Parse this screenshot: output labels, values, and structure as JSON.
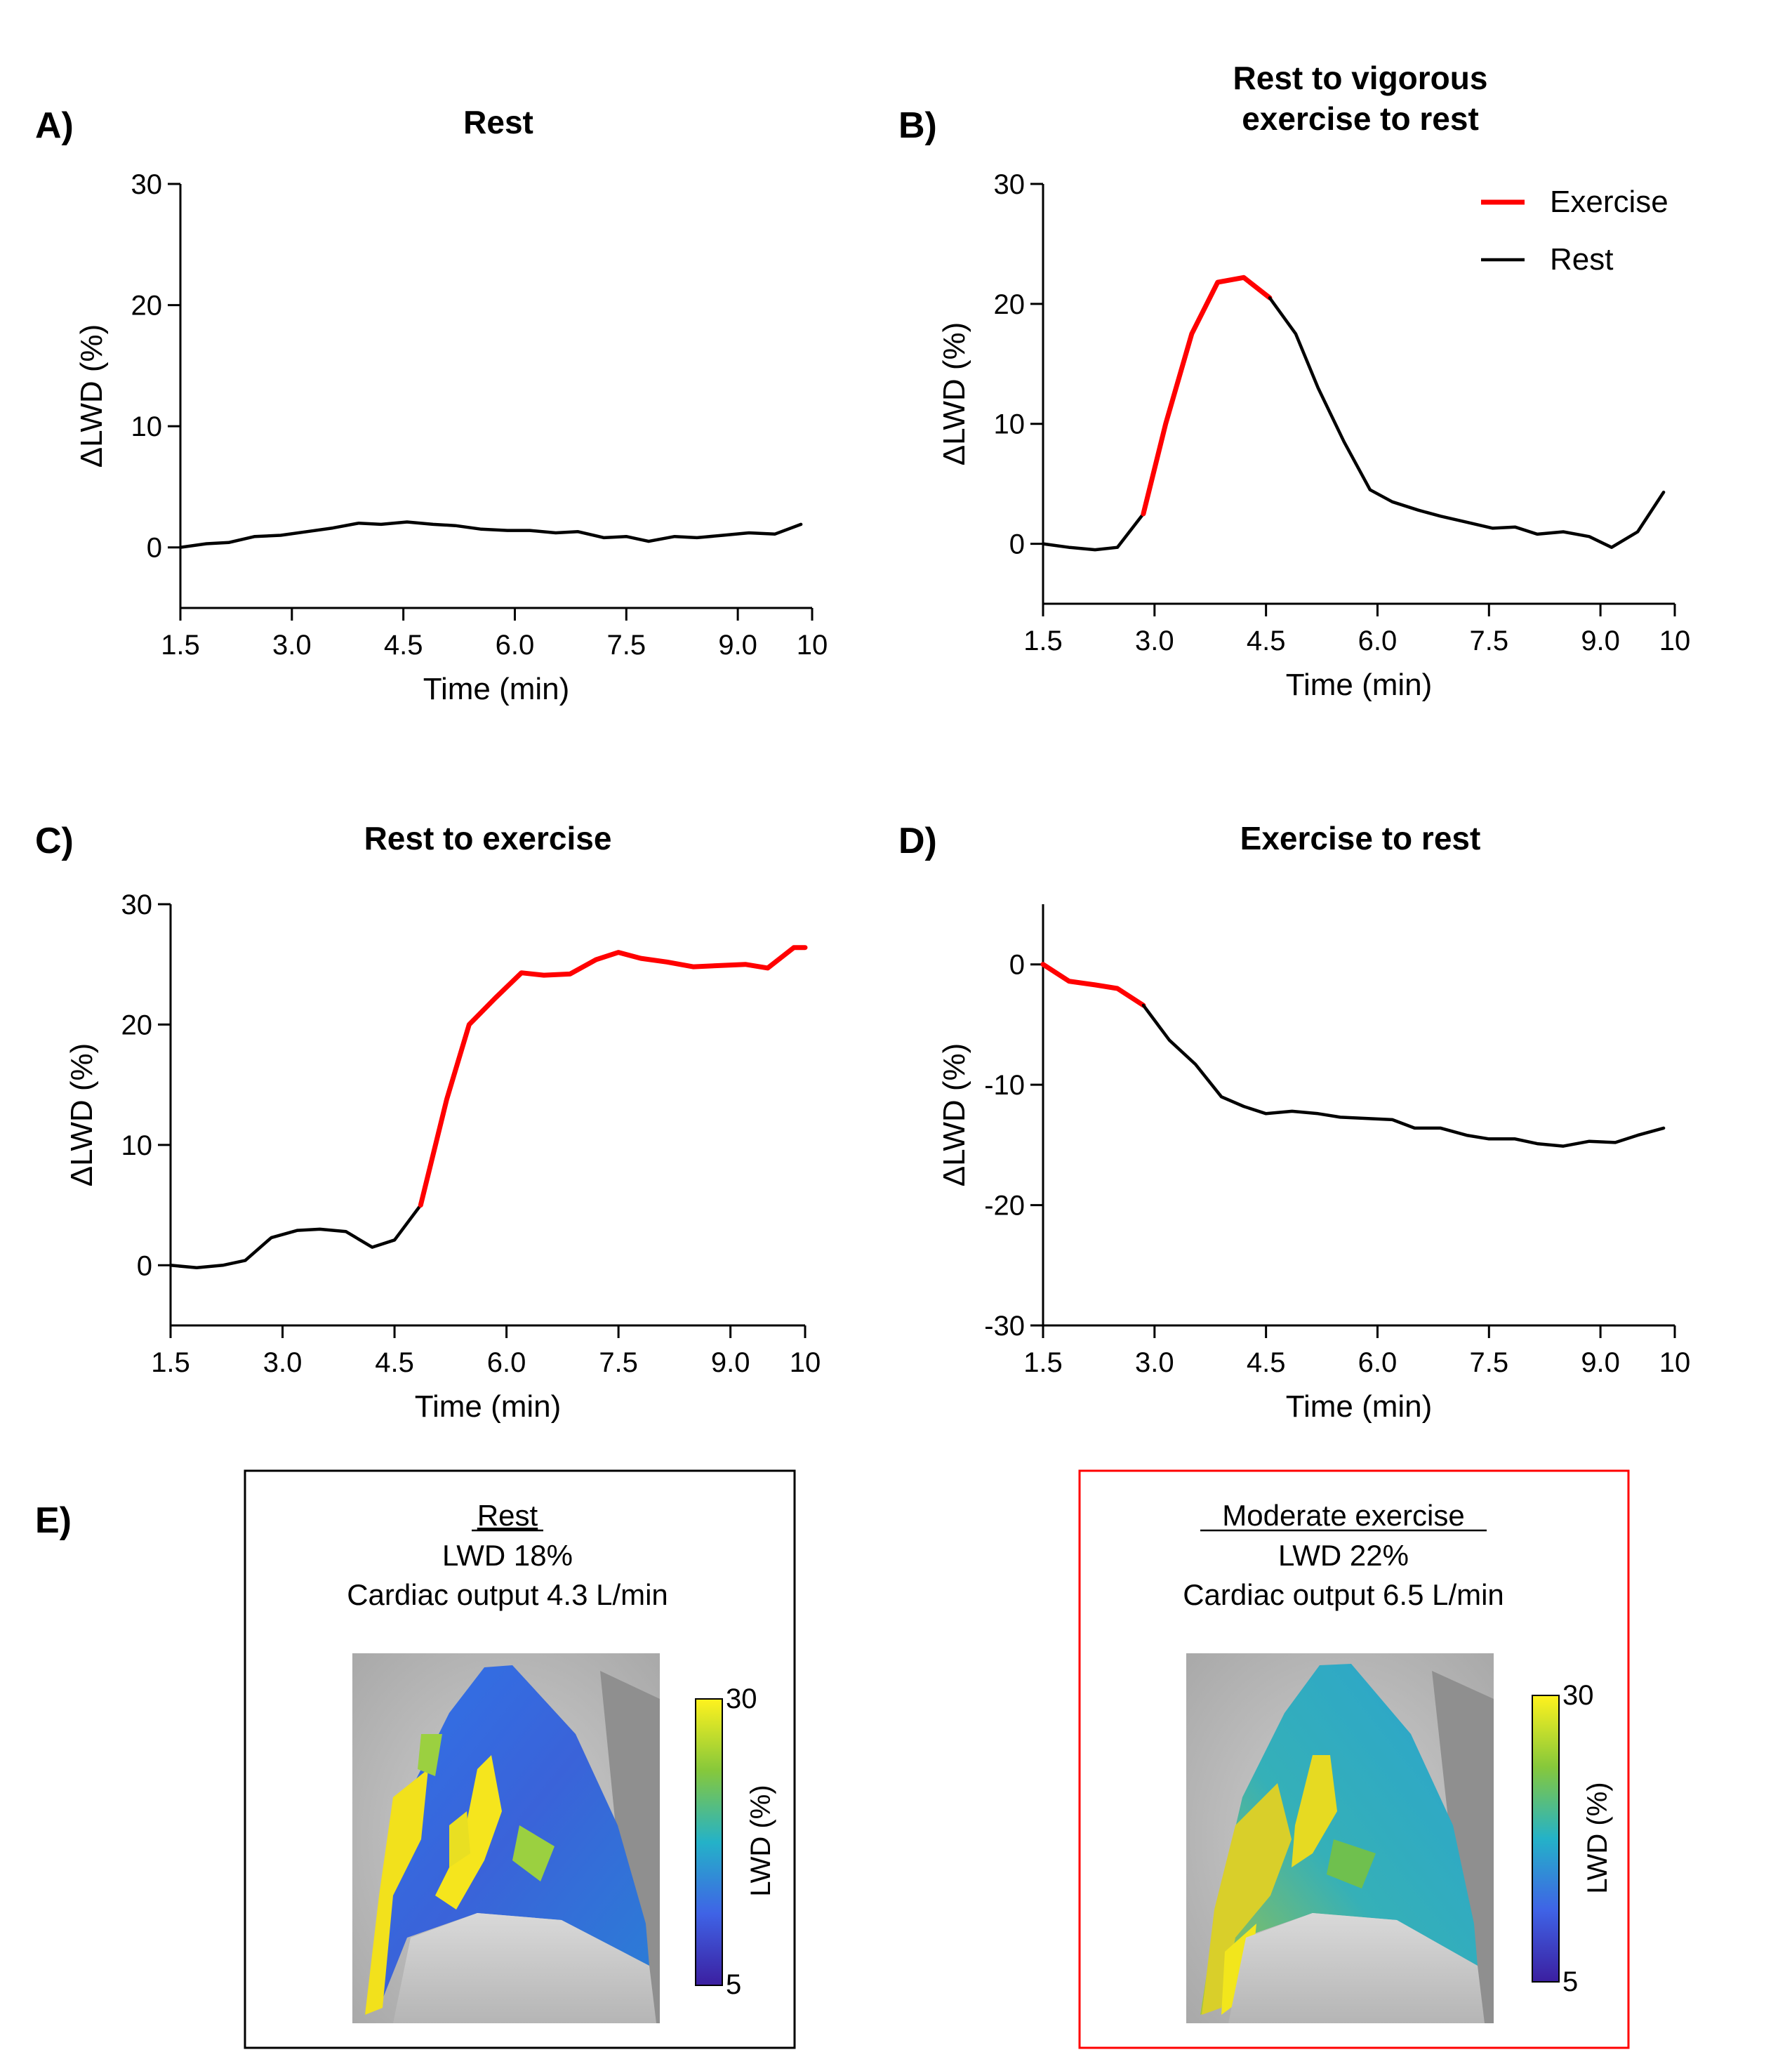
{
  "colors": {
    "exercise": "#ff0000",
    "rest": "#000000",
    "box_rest": "#000000",
    "box_exercise": "#ff0000"
  },
  "chart_data": [
    {
      "id": "A",
      "panel_label": "A)",
      "type": "line",
      "title": [
        "Rest"
      ],
      "xlabel": "Time (min)",
      "ylabel": "ΔLWD (%)",
      "xlim": [
        1.5,
        10
      ],
      "ylim": [
        -5,
        30
      ],
      "xticks": [
        1.5,
        3.0,
        4.5,
        6.0,
        7.5,
        9.0,
        10
      ],
      "xtick_labels": [
        "1.5",
        "3.0",
        "4.5",
        "6.0",
        "7.5",
        "9.0",
        "10"
      ],
      "yticks": [
        0,
        10,
        20,
        30
      ],
      "ytick_labels": [
        "0",
        "10",
        "20",
        "30"
      ],
      "series": [
        {
          "color": "rest",
          "x": [
            1.5,
            1.85,
            2.15,
            2.5,
            2.85,
            3.2,
            3.55,
            3.9,
            4.2,
            4.55,
            4.9,
            5.2,
            5.55,
            5.9,
            6.2,
            6.55,
            6.85,
            7.2,
            7.5,
            7.8,
            8.15,
            8.45,
            8.8,
            9.15,
            9.5,
            9.85
          ],
          "y": [
            0,
            0.3,
            0.4,
            0.9,
            1.0,
            1.3,
            1.6,
            2.0,
            1.9,
            2.1,
            1.9,
            1.8,
            1.5,
            1.4,
            1.4,
            1.2,
            1.3,
            0.8,
            0.9,
            0.5,
            0.9,
            0.8,
            1.0,
            1.2,
            1.1,
            1.9
          ]
        }
      ]
    },
    {
      "id": "B",
      "panel_label": "B)",
      "type": "line",
      "title": [
        "Rest to vigorous",
        "exercise to rest"
      ],
      "xlabel": "Time (min)",
      "ylabel": "ΔLWD (%)",
      "xlim": [
        1.5,
        10
      ],
      "ylim": [
        -5,
        30
      ],
      "xticks": [
        1.5,
        3.0,
        4.5,
        6.0,
        7.5,
        9.0,
        10
      ],
      "xtick_labels": [
        "1.5",
        "3.0",
        "4.5",
        "6.0",
        "7.5",
        "9.0",
        "10"
      ],
      "yticks": [
        0,
        10,
        20,
        30
      ],
      "ytick_labels": [
        "0",
        "10",
        "20",
        "30"
      ],
      "legend": {
        "placement": "top-right",
        "entries": [
          {
            "label": "Exercise",
            "color": "exercise"
          },
          {
            "label": "Rest",
            "color": "rest"
          }
        ]
      },
      "series": [
        {
          "color": "rest",
          "x": [
            1.5,
            1.85,
            2.2,
            2.5,
            2.85
          ],
          "y": [
            0,
            -0.3,
            -0.5,
            -0.3,
            2.5
          ]
        },
        {
          "color": "exercise",
          "x": [
            2.85,
            3.15,
            3.5,
            3.85,
            4.2,
            4.55
          ],
          "y": [
            2.5,
            10,
            17.5,
            21.8,
            22.2,
            20.5
          ]
        },
        {
          "color": "rest",
          "x": [
            4.55,
            4.9,
            5.2,
            5.55,
            5.9,
            6.2,
            6.55,
            6.85,
            7.2,
            7.55,
            7.85,
            8.15,
            8.5,
            8.85,
            9.15,
            9.5,
            9.85
          ],
          "y": [
            20.5,
            17.5,
            13,
            8.5,
            4.5,
            3.5,
            2.8,
            2.3,
            1.8,
            1.3,
            1.4,
            0.8,
            1.0,
            0.6,
            -0.3,
            1.0,
            4.3
          ]
        }
      ]
    },
    {
      "id": "C",
      "panel_label": "C)",
      "type": "line",
      "title": [
        "Rest to exercise"
      ],
      "xlabel": "Time (min)",
      "ylabel": "ΔLWD (%)",
      "xlim": [
        1.5,
        10
      ],
      "ylim": [
        -5,
        30
      ],
      "xticks": [
        1.5,
        3.0,
        4.5,
        6.0,
        7.5,
        9.0,
        10
      ],
      "xtick_labels": [
        "1.5",
        "3.0",
        "4.5",
        "6.0",
        "7.5",
        "9.0",
        "10"
      ],
      "yticks": [
        0,
        10,
        20,
        30
      ],
      "ytick_labels": [
        "0",
        "10",
        "20",
        "30"
      ],
      "series": [
        {
          "color": "rest",
          "x": [
            1.5,
            1.85,
            2.2,
            2.5,
            2.85,
            3.2,
            3.5,
            3.85,
            4.2,
            4.5,
            4.85
          ],
          "y": [
            0,
            -0.2,
            0,
            0.4,
            2.3,
            2.9,
            3.0,
            2.8,
            1.5,
            2.1,
            5.0
          ]
        },
        {
          "color": "exercise",
          "x": [
            4.85,
            5.2,
            5.5,
            5.85,
            6.2,
            6.5,
            6.85,
            7.2,
            7.5,
            7.8,
            8.15,
            8.5,
            8.85,
            9.2,
            9.5,
            9.85,
            10
          ],
          "y": [
            5.0,
            13.8,
            20.0,
            22.2,
            24.3,
            24.1,
            24.2,
            25.4,
            26.0,
            25.5,
            25.2,
            24.8,
            24.9,
            25.0,
            24.7,
            26.4,
            26.4
          ]
        }
      ]
    },
    {
      "id": "D",
      "panel_label": "D)",
      "type": "line",
      "title": [
        "Exercise to rest"
      ],
      "xlabel": "Time (min)",
      "ylabel": "ΔLWD (%)",
      "xlim": [
        1.5,
        10
      ],
      "ylim": [
        -30,
        5
      ],
      "xticks": [
        1.5,
        3.0,
        4.5,
        6.0,
        7.5,
        9.0,
        10
      ],
      "xtick_labels": [
        "1.5",
        "3.0",
        "4.5",
        "6.0",
        "7.5",
        "9.0",
        "10"
      ],
      "yticks": [
        0,
        -10,
        -20,
        -30
      ],
      "ytick_labels": [
        "0",
        "-10",
        "-20",
        "-30"
      ],
      "series": [
        {
          "color": "exercise",
          "x": [
            1.5,
            1.85,
            2.2,
            2.5,
            2.85
          ],
          "y": [
            0,
            -1.4,
            -1.7,
            -2.0,
            -3.4
          ]
        },
        {
          "color": "rest",
          "x": [
            2.85,
            3.2,
            3.55,
            3.9,
            4.2,
            4.5,
            4.85,
            5.2,
            5.5,
            5.85,
            6.2,
            6.5,
            6.85,
            7.2,
            7.5,
            7.85,
            8.15,
            8.5,
            8.85,
            9.2,
            9.5,
            9.85
          ],
          "y": [
            -3.4,
            -6.3,
            -8.3,
            -11.0,
            -11.8,
            -12.4,
            -12.2,
            -12.4,
            -12.7,
            -12.8,
            -12.9,
            -13.6,
            -13.6,
            -14.2,
            -14.5,
            -14.5,
            -14.9,
            -15.1,
            -14.7,
            -14.8,
            -14.2,
            -13.6
          ]
        }
      ]
    }
  ],
  "panel_e": {
    "panel_label": "E)",
    "colorbar_label": "LWD (%)",
    "colorbar_max": "30",
    "colorbar_min": "5",
    "boxes": [
      {
        "id": "rest",
        "title": "Rest",
        "line2": "LWD 18%",
        "line3": "Cardiac output 4.3 L/min"
      },
      {
        "id": "exercise",
        "title": "Moderate exercise",
        "line2": "LWD 22%",
        "line3": "Cardiac output 6.5 L/min"
      }
    ]
  }
}
